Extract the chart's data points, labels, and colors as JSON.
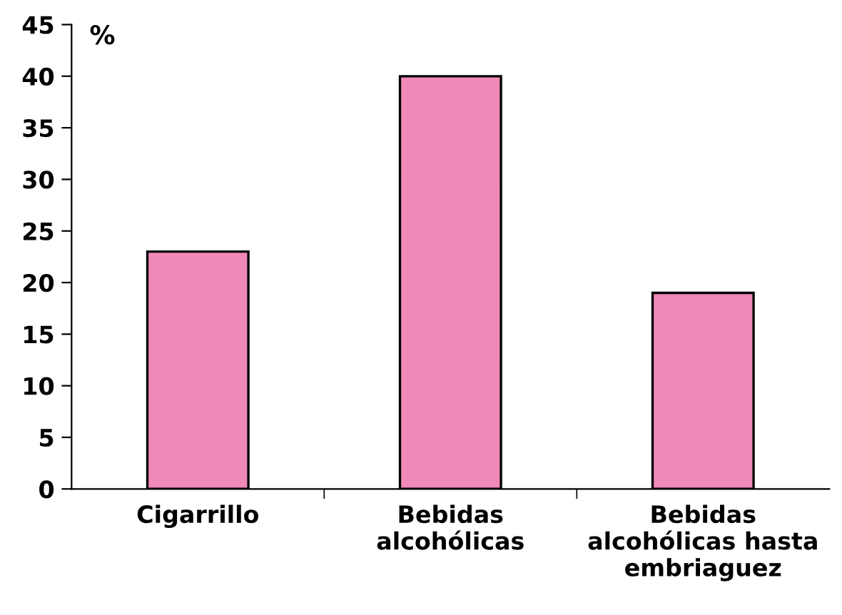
{
  "chart_data": {
    "type": "bar",
    "ylabel": "%",
    "categories": [
      "Cigarrillo",
      "Bebidas\nalcohólicas",
      "Bebidas\nalcohólicas hasta\nembriaguez"
    ],
    "values": [
      23,
      40,
      19
    ],
    "color": "#f088b8",
    "ylim": [
      0,
      45
    ],
    "yticks": [
      0,
      5,
      10,
      15,
      20,
      25,
      30,
      35,
      40,
      45
    ],
    "grid": false,
    "legend": false
  }
}
